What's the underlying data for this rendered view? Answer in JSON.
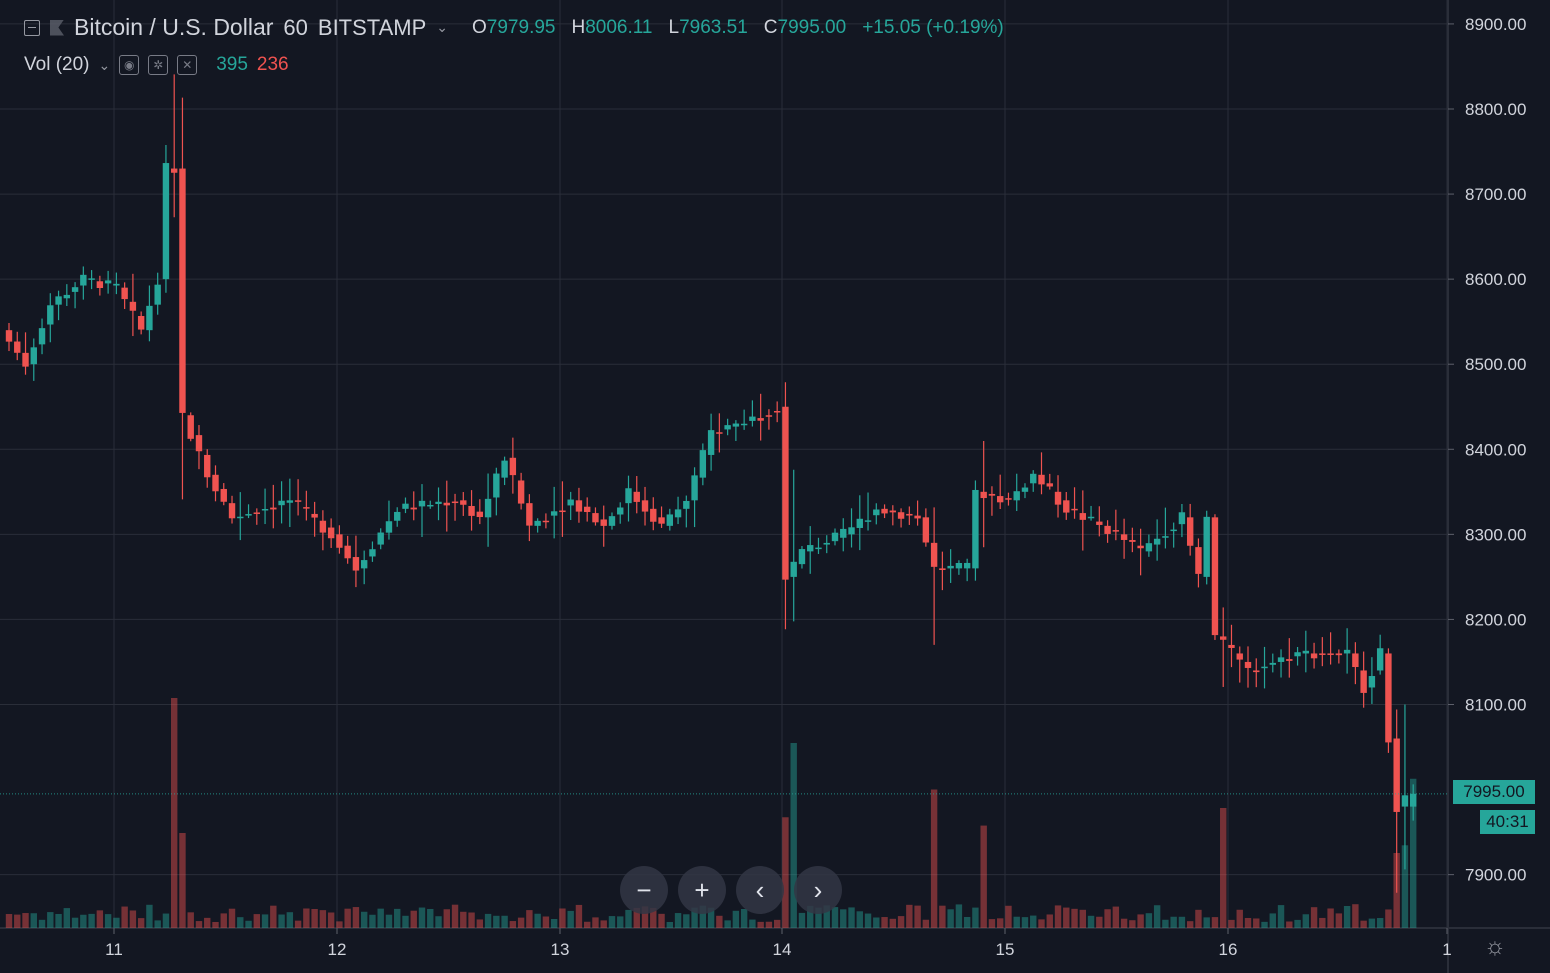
{
  "header": {
    "symbol": "Bitcoin / U.S. Dollar",
    "interval": "60",
    "exchange": "BITSTAMP",
    "ohlc": {
      "o_label": "O",
      "o": "7979.95",
      "h_label": "H",
      "h": "8006.11",
      "l_label": "L",
      "l": "7963.51",
      "c_label": "C",
      "c": "7995.00"
    },
    "change": "+15.05 (+0.19%)"
  },
  "volume_legend": {
    "label": "Vol (20)",
    "up": "395",
    "down": "236"
  },
  "last_price": "7995.00",
  "countdown": "40:31",
  "nav_buttons": {
    "zoom_out": "−",
    "zoom_in": "+",
    "scroll_left": "‹",
    "scroll_right": "›"
  },
  "colors": {
    "background": "#131722",
    "up": "#26a69a",
    "down": "#ef5350",
    "grid": "#2a2e39",
    "text": "#d1d4dc"
  },
  "chart_data": {
    "type": "candlestick",
    "y_ticks": [
      "8900.00",
      "8800.00",
      "8700.00",
      "8600.00",
      "8500.00",
      "8400.00",
      "8300.00",
      "8200.00",
      "8100.00",
      "7900.00"
    ],
    "ylim": [
      7840,
      8920
    ],
    "x_ticks": [
      "11",
      "12",
      "13",
      "14",
      "15",
      "16",
      "1"
    ],
    "grid": true,
    "keypoints": [
      {
        "t": 0,
        "p": 8540
      },
      {
        "t": 3,
        "p": 8500
      },
      {
        "t": 6,
        "p": 8570
      },
      {
        "t": 10,
        "p": 8600
      },
      {
        "t": 14,
        "p": 8590
      },
      {
        "t": 17,
        "p": 8540
      },
      {
        "t": 19,
        "p": 8600
      },
      {
        "t": 20,
        "p": 8730
      },
      {
        "t": 21,
        "p": 8730
      },
      {
        "t": 22,
        "p": 8440
      },
      {
        "t": 25,
        "p": 8370
      },
      {
        "t": 28,
        "p": 8320
      },
      {
        "t": 35,
        "p": 8340
      },
      {
        "t": 40,
        "p": 8300
      },
      {
        "t": 43,
        "p": 8260
      },
      {
        "t": 48,
        "p": 8330
      },
      {
        "t": 55,
        "p": 8340
      },
      {
        "t": 58,
        "p": 8320
      },
      {
        "t": 61,
        "p": 8390
      },
      {
        "t": 64,
        "p": 8310
      },
      {
        "t": 69,
        "p": 8340
      },
      {
        "t": 73,
        "p": 8310
      },
      {
        "t": 76,
        "p": 8350
      },
      {
        "t": 80,
        "p": 8310
      },
      {
        "t": 83,
        "p": 8340
      },
      {
        "t": 86,
        "p": 8420
      },
      {
        "t": 92,
        "p": 8440
      },
      {
        "t": 94,
        "p": 8450
      },
      {
        "t": 95,
        "p": 8250
      },
      {
        "t": 97,
        "p": 8280
      },
      {
        "t": 102,
        "p": 8300
      },
      {
        "t": 106,
        "p": 8330
      },
      {
        "t": 111,
        "p": 8320
      },
      {
        "t": 113,
        "p": 8260
      },
      {
        "t": 117,
        "p": 8260
      },
      {
        "t": 118,
        "p": 8350
      },
      {
        "t": 122,
        "p": 8340
      },
      {
        "t": 125,
        "p": 8370
      },
      {
        "t": 129,
        "p": 8330
      },
      {
        "t": 135,
        "p": 8300
      },
      {
        "t": 138,
        "p": 8280
      },
      {
        "t": 143,
        "p": 8320
      },
      {
        "t": 145,
        "p": 8250
      },
      {
        "t": 146,
        "p": 8320
      },
      {
        "t": 147,
        "p": 8180
      },
      {
        "t": 151,
        "p": 8140
      },
      {
        "t": 154,
        "p": 8150
      },
      {
        "t": 157,
        "p": 8160
      },
      {
        "t": 163,
        "p": 8160
      },
      {
        "t": 165,
        "p": 8120
      },
      {
        "t": 167,
        "p": 8160
      },
      {
        "t": 168,
        "p": 8060
      },
      {
        "t": 169,
        "p": 7980
      },
      {
        "t": 170,
        "p": 7995
      }
    ],
    "last_bar": {
      "o": 7979.95,
      "h": 8006.11,
      "l": 7963.51,
      "c": 7995.0
    }
  }
}
